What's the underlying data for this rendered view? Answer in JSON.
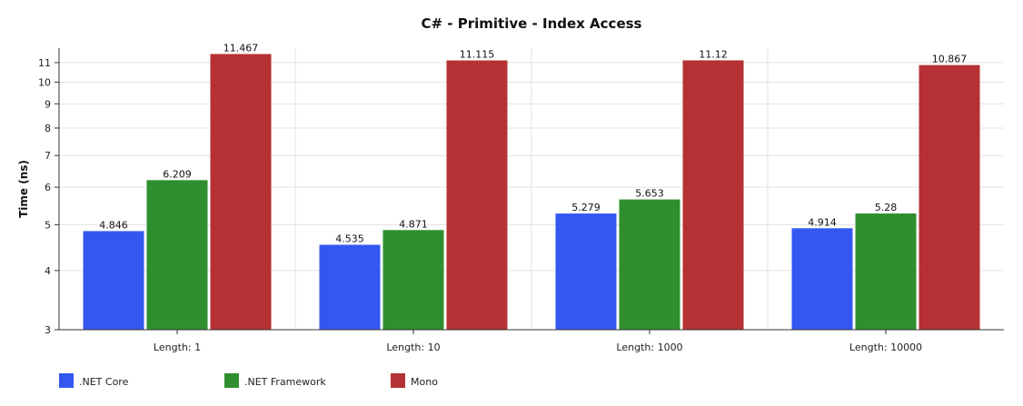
{
  "chart_data": {
    "type": "bar",
    "title": "C# - Primitive -  Index Access",
    "xlabel": "",
    "ylabel": "Time (ns)",
    "y_scale": "log",
    "ylim": [
      3,
      11.8
    ],
    "y_ticks": [
      3,
      4,
      5,
      6,
      7,
      8,
      9,
      10,
      11
    ],
    "grid": true,
    "legend_position": "bottom-left",
    "categories": [
      "Length: 1",
      "Length: 10",
      "Length: 1000",
      "Length: 10000"
    ],
    "series": [
      {
        "name": ".NET Core",
        "color": "#3457f0",
        "values": [
          4.846,
          4.535,
          5.279,
          4.914
        ],
        "labels": [
          "4.846",
          "4.535",
          "5.279",
          "4.914"
        ]
      },
      {
        "name": ".NET Framework",
        "color": "#2f8f2f",
        "values": [
          6.209,
          4.871,
          5.653,
          5.28
        ],
        "labels": [
          "6.209",
          "4.871",
          "5.653",
          "5.28"
        ]
      },
      {
        "name": "Mono",
        "color": "#b53133",
        "values": [
          11.467,
          11.115,
          11.12,
          10.867
        ],
        "labels": [
          "11.467",
          "11.115",
          "11.12",
          "10.867"
        ]
      }
    ]
  }
}
